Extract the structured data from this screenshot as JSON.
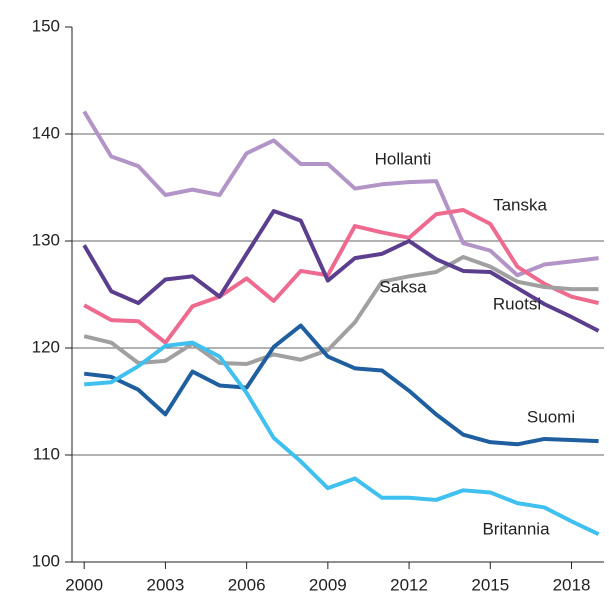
{
  "chart_data": {
    "type": "line",
    "x": [
      2000,
      2001,
      2002,
      2003,
      2004,
      2005,
      2006,
      2007,
      2008,
      2009,
      2010,
      2011,
      2012,
      2013,
      2014,
      2015,
      2016,
      2017,
      2018,
      2019
    ],
    "series": [
      {
        "name": "Hollanti",
        "color": "#b294c7",
        "values": [
          142.1,
          137.9,
          137.0,
          134.3,
          134.8,
          134.3,
          138.2,
          139.4,
          137.2,
          137.2,
          134.9,
          135.3,
          135.5,
          135.6,
          129.8,
          129.1,
          126.8,
          127.8,
          128.1,
          128.4
        ]
      },
      {
        "name": "Tanska",
        "color": "#ee6a8e",
        "values": [
          124.0,
          122.6,
          122.5,
          120.5,
          123.9,
          124.8,
          126.5,
          124.4,
          127.2,
          126.8,
          131.4,
          130.8,
          130.3,
          132.5,
          132.9,
          131.6,
          127.6,
          126.0,
          124.8,
          124.2
        ]
      },
      {
        "name": "Saksa",
        "color": "#a0a0a0",
        "values": [
          121.1,
          120.5,
          118.6,
          118.8,
          120.4,
          118.6,
          118.5,
          119.4,
          118.9,
          119.8,
          122.4,
          126.2,
          126.7,
          127.1,
          128.5,
          127.6,
          126.2,
          125.7,
          125.5,
          125.5
        ]
      },
      {
        "name": "Ruotsi",
        "color": "#5b3f8e",
        "values": [
          129.6,
          125.3,
          124.2,
          126.4,
          126.7,
          124.8,
          128.8,
          132.8,
          131.9,
          126.3,
          128.4,
          128.8,
          130.0,
          128.3,
          127.2,
          127.1,
          125.6,
          124.1,
          122.9,
          121.6
        ]
      },
      {
        "name": "Suomi",
        "color": "#1f5fa0",
        "values": [
          117.6,
          117.3,
          116.1,
          113.8,
          117.8,
          116.5,
          116.3,
          120.1,
          122.1,
          119.2,
          118.1,
          117.9,
          116.0,
          113.8,
          111.9,
          111.2,
          111.0,
          111.5,
          111.4,
          111.3
        ]
      },
      {
        "name": "Britannia",
        "color": "#3fc0ee",
        "values": [
          116.6,
          116.8,
          118.3,
          120.2,
          120.5,
          119.2,
          115.8,
          111.6,
          109.4,
          106.9,
          107.8,
          106.0,
          106.0,
          105.8,
          106.7,
          106.5,
          105.5,
          105.1,
          103.8,
          102.6
        ]
      }
    ],
    "xlim": [
      1999.55,
      2019.2
    ],
    "xticks": [
      2000,
      2003,
      2006,
      2009,
      2012,
      2015,
      2018
    ],
    "ylim": [
      100,
      150
    ],
    "yticks": [
      100,
      110,
      120,
      130,
      140,
      150
    ],
    "grid": true
  }
}
